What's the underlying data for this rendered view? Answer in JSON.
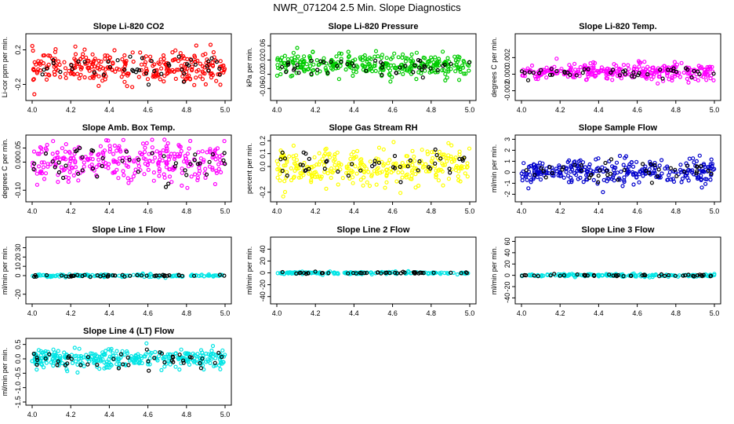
{
  "title": "NWR_071204  2.5 Min. Slope Diagnostics",
  "chart_data": [
    {
      "type": "scatter",
      "title": "Slope Li-820 CO2",
      "ylabel": "Li-cor ppm per min.",
      "xlim": [
        4.0,
        5.0
      ],
      "ylim": [
        -0.35,
        0.35
      ],
      "xticks": [
        "4.0",
        "4.2",
        "4.4",
        "4.6",
        "4.8",
        "5.0"
      ],
      "yticks": [
        {
          "v": -0.2,
          "t": "-0.2"
        },
        {
          "v": 0.2,
          "t": "0.2"
        }
      ],
      "series": [
        {
          "color": "#ff0000",
          "center": 0.0,
          "spread": 0.09,
          "n": 300
        },
        {
          "color": "#000000",
          "center": 0.0,
          "spread": 0.07,
          "n": 45
        }
      ]
    },
    {
      "type": "scatter",
      "title": "Slope Li-820 Pressure",
      "ylabel": "kPa per min.",
      "xlim": [
        4.0,
        5.0
      ],
      "ylim": [
        -0.085,
        0.085
      ],
      "xticks": [
        "4.0",
        "4.2",
        "4.4",
        "4.6",
        "4.8",
        "5.0"
      ],
      "yticks": [
        {
          "v": -0.06,
          "t": "-0.06"
        },
        {
          "v": -0.02,
          "t": "-0.02"
        },
        {
          "v": 0.02,
          "t": "0.02"
        },
        {
          "v": 0.06,
          "t": "0.06"
        }
      ],
      "series": [
        {
          "color": "#00cc00",
          "center": 0.005,
          "spread": 0.016,
          "n": 320
        },
        {
          "color": "#000000",
          "center": 0.0,
          "spread": 0.012,
          "n": 45
        }
      ]
    },
    {
      "type": "scatter",
      "title": "Slope Li-820 Temp.",
      "ylabel": "degrees C per min.",
      "xlim": [
        4.0,
        5.0
      ],
      "ylim": [
        -0.0028,
        0.0045
      ],
      "xticks": [
        "4.0",
        "4.2",
        "4.4",
        "4.6",
        "4.8",
        "5.0"
      ],
      "yticks": [
        {
          "v": -0.002,
          "t": "-0.002"
        },
        {
          "v": 0.0,
          "t": "0.000"
        },
        {
          "v": 0.002,
          "t": "0.002"
        }
      ],
      "series": [
        {
          "color": "#ff00ff",
          "center": 0.0003,
          "spread": 0.0005,
          "n": 300
        },
        {
          "color": "#000000",
          "center": 0.0,
          "spread": 0.0004,
          "n": 45
        }
      ]
    },
    {
      "type": "scatter",
      "title": "Slope Amb. Box Temp.",
      "ylabel": "degrees C per min.",
      "xlim": [
        4.0,
        5.0
      ],
      "ylim": [
        -0.13,
        0.085
      ],
      "xticks": [
        "4.0",
        "4.2",
        "4.4",
        "4.6",
        "4.8",
        "5.0"
      ],
      "yticks": [
        {
          "v": -0.1,
          "t": "-0.10"
        },
        {
          "v": 0.0,
          "t": "0.00"
        },
        {
          "v": 0.05,
          "t": "0.05"
        }
      ],
      "series": [
        {
          "color": "#ff00ff",
          "center": 0.0,
          "spread": 0.035,
          "n": 300
        },
        {
          "color": "#000000",
          "center": -0.01,
          "spread": 0.03,
          "n": 45
        }
      ]
    },
    {
      "type": "scatter",
      "title": "Slope Gas Stream RH",
      "ylabel": "percent per min.",
      "xlim": [
        4.0,
        5.0
      ],
      "ylim": [
        -0.25,
        0.22
      ],
      "xticks": [
        "4.0",
        "4.2",
        "4.4",
        "4.6",
        "4.8",
        "5.0"
      ],
      "yticks": [
        {
          "v": -0.2,
          "t": "-0.2"
        },
        {
          "v": 0.0,
          "t": "0.0"
        },
        {
          "v": 0.1,
          "t": "0.1"
        },
        {
          "v": 0.2,
          "t": "0.2"
        }
      ],
      "series": [
        {
          "color": "#ffff00",
          "center": 0.0,
          "spread": 0.07,
          "n": 300
        },
        {
          "color": "#000000",
          "center": 0.0,
          "spread": 0.06,
          "n": 45
        }
      ]
    },
    {
      "type": "scatter",
      "title": "Slope Sample Flow",
      "ylabel": "ml/min per min.",
      "xlim": [
        4.0,
        5.0
      ],
      "ylim": [
        -2.4,
        3.1
      ],
      "xticks": [
        "4.0",
        "4.2",
        "4.4",
        "4.6",
        "4.8",
        "5.0"
      ],
      "yticks": [
        {
          "v": -2,
          "t": "-2"
        },
        {
          "v": -1,
          "t": "-1"
        },
        {
          "v": 0,
          "t": "0"
        },
        {
          "v": 1,
          "t": "1"
        },
        {
          "v": 2,
          "t": "2"
        },
        {
          "v": 3,
          "t": "3"
        }
      ],
      "series": [
        {
          "color": "#0000cc",
          "center": 0.0,
          "spread": 0.6,
          "n": 300
        },
        {
          "color": "#000000",
          "center": 0.0,
          "spread": 0.45,
          "n": 45
        }
      ]
    },
    {
      "type": "scatter",
      "title": "Slope Line 1 Flow",
      "ylabel": "ml/min per min.",
      "xlim": [
        4.0,
        5.0
      ],
      "ylim": [
        -27,
        38
      ],
      "xticks": [
        "4.0",
        "4.2",
        "4.4",
        "4.6",
        "4.8",
        "5.0"
      ],
      "yticks": [
        {
          "v": -20,
          "t": "-20"
        },
        {
          "v": 0,
          "t": "0"
        },
        {
          "v": 10,
          "t": "10"
        },
        {
          "v": 20,
          "t": "20"
        },
        {
          "v": 30,
          "t": "30"
        }
      ],
      "series": [
        {
          "color": "#00e5e5",
          "center": 0.0,
          "spread": 0.7,
          "n": 160
        },
        {
          "color": "#000000",
          "center": 0.0,
          "spread": 0.6,
          "n": 45
        }
      ]
    },
    {
      "type": "scatter",
      "title": "Slope Line 2 Flow",
      "ylabel": "ml/min per min.",
      "xlim": [
        4.0,
        5.0
      ],
      "ylim": [
        -47,
        55
      ],
      "xticks": [
        "4.0",
        "4.2",
        "4.4",
        "4.6",
        "4.8",
        "5.0"
      ],
      "yticks": [
        {
          "v": -40,
          "t": "-40"
        },
        {
          "v": -20,
          "t": "-20"
        },
        {
          "v": 0,
          "t": "0"
        },
        {
          "v": 20,
          "t": "20"
        },
        {
          "v": 40,
          "t": "40"
        }
      ],
      "series": [
        {
          "color": "#00e5e5",
          "center": 0.0,
          "spread": 1.0,
          "n": 160
        },
        {
          "color": "#000000",
          "center": 0.0,
          "spread": 0.8,
          "n": 45
        }
      ]
    },
    {
      "type": "scatter",
      "title": "Slope Line 3 Flow",
      "ylabel": "ml/min per min.",
      "xlim": [
        4.0,
        5.0
      ],
      "ylim": [
        -45,
        62
      ],
      "xticks": [
        "4.0",
        "4.2",
        "4.4",
        "4.6",
        "4.8",
        "5.0"
      ],
      "yticks": [
        {
          "v": -40,
          "t": "-40"
        },
        {
          "v": -20,
          "t": "-20"
        },
        {
          "v": 0,
          "t": "0"
        },
        {
          "v": 20,
          "t": "20"
        },
        {
          "v": 40,
          "t": "40"
        },
        {
          "v": 60,
          "t": "60"
        }
      ],
      "series": [
        {
          "color": "#00e5e5",
          "center": 0.0,
          "spread": 1.2,
          "n": 160
        },
        {
          "color": "#000000",
          "center": 0.0,
          "spread": 1.0,
          "n": 45
        }
      ]
    },
    {
      "type": "scatter",
      "title": "Slope Line 4 (LT) Flow",
      "ylabel": "ml/min per min.",
      "xlim": [
        4.0,
        5.0
      ],
      "ylim": [
        -1.5,
        0.6
      ],
      "xticks": [
        "4.0",
        "4.2",
        "4.4",
        "4.6",
        "4.8",
        "5.0"
      ],
      "yticks": [
        {
          "v": -1.5,
          "t": "-1.5"
        },
        {
          "v": -1.0,
          "t": "-1.0"
        },
        {
          "v": -0.5,
          "t": "-0.5"
        },
        {
          "v": 0.0,
          "t": "0.0"
        },
        {
          "v": 0.5,
          "t": "0.5"
        }
      ],
      "series": [
        {
          "color": "#00e5e5",
          "center": 0.0,
          "spread": 0.17,
          "n": 320
        },
        {
          "color": "#000000",
          "center": -0.05,
          "spread": 0.15,
          "n": 45
        }
      ]
    }
  ]
}
